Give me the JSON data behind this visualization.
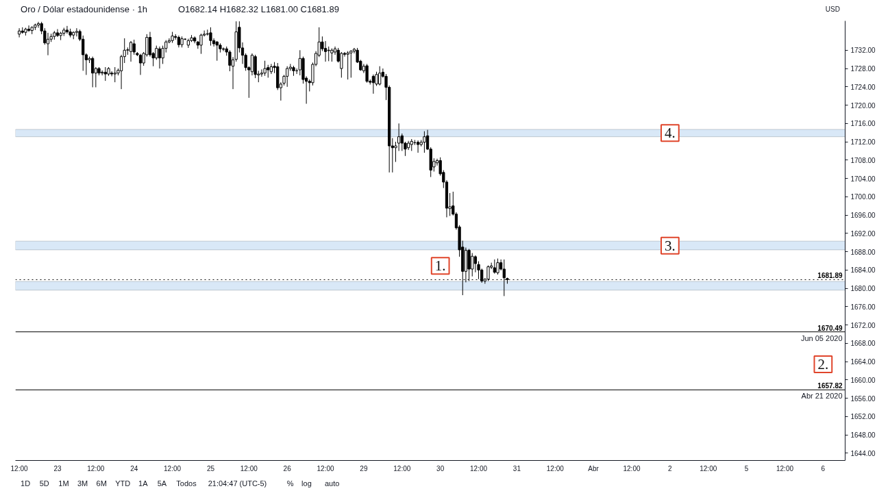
{
  "chart_data": {
    "type": "candlestick",
    "title": "Oro / Dólar estadounidense · 1h",
    "subtitle": "O1682.14  H1682.32  L1681.00  C1681.89",
    "ylabel": "USD",
    "color": "#000000",
    "categories": [
      "12:00",
      null,
      null,
      null,
      null,
      null,
      null,
      null,
      null,
      null,
      null,
      null,
      "23",
      null,
      null,
      null,
      null,
      null,
      null,
      null,
      null,
      null,
      null,
      null,
      "12:00",
      null,
      null,
      null,
      null,
      null,
      null,
      null,
      null,
      null,
      null,
      null,
      "24",
      null,
      null,
      null,
      null,
      null,
      null,
      null,
      null,
      null,
      null,
      null,
      "12:00",
      null,
      null,
      null,
      null,
      null,
      null,
      null,
      null,
      null,
      null,
      null,
      "25",
      null,
      null,
      null,
      null,
      null,
      null,
      null,
      null,
      null,
      null,
      null,
      "12:00",
      null,
      null,
      null,
      null,
      null,
      null,
      null,
      null,
      null,
      null,
      null,
      "26",
      null,
      null,
      null,
      null,
      null,
      null,
      null,
      null,
      null,
      null,
      null,
      "12:00",
      null,
      null,
      null,
      null,
      null,
      null,
      null,
      null,
      null,
      null,
      null,
      "29",
      null,
      null,
      null,
      null,
      null,
      null,
      null,
      null,
      null,
      null,
      null,
      "12:00",
      null,
      null,
      null,
      null,
      null,
      null,
      null,
      null,
      null,
      null,
      null,
      "30",
      null,
      null,
      null,
      null,
      null,
      null,
      null,
      null,
      null,
      null,
      null,
      "12:00",
      null,
      null,
      null,
      null,
      null,
      null,
      null,
      null,
      null,
      null,
      null,
      "31",
      null,
      null,
      null,
      null,
      null,
      null,
      null,
      null,
      null,
      null,
      null,
      "12:00",
      null,
      null,
      null,
      null,
      null,
      null,
      null,
      null,
      null,
      null,
      null,
      "Abr",
      null,
      null,
      null,
      null,
      null,
      null,
      null,
      null,
      null,
      null,
      null,
      "12:00",
      null,
      null,
      null,
      null,
      null,
      null,
      null,
      null,
      null,
      null,
      null,
      "2",
      null,
      null,
      null,
      null,
      null,
      null,
      null,
      null,
      null,
      null,
      null,
      "12:00",
      null,
      null,
      null,
      null,
      null,
      null,
      null,
      null,
      null,
      null,
      null,
      "5",
      null,
      null,
      null,
      null,
      null,
      null,
      null,
      null,
      null,
      null,
      null,
      "12:00",
      null,
      null,
      null,
      null,
      null,
      null,
      null,
      null,
      null,
      null,
      null,
      "6",
      null,
      null,
      null,
      null,
      null,
      null
    ],
    "ohlc": [
      [
        1735.5,
        1736.8,
        1734.8,
        1736.2
      ],
      [
        1736.2,
        1737.0,
        1735.6,
        1735.9
      ],
      [
        1735.9,
        1736.9,
        1735.2,
        1736.6
      ],
      [
        1736.6,
        1737.4,
        1736.0,
        1736.3
      ],
      [
        1736.3,
        1737.2,
        1735.5,
        1737.0
      ],
      [
        1737.0,
        1737.8,
        1736.4,
        1737.5
      ],
      [
        1737.5,
        1738.2,
        1736.9,
        1737.8
      ],
      [
        1737.8,
        1738.2,
        1735.5,
        1736.2
      ],
      [
        1736.2,
        1736.8,
        1733.2,
        1733.6
      ],
      [
        1733.4,
        1735.8,
        1730.9,
        1734.4
      ],
      [
        1734.4,
        1735.6,
        1733.8,
        1735.0
      ],
      [
        1735.0,
        1736.2,
        1734.3,
        1735.8
      ],
      [
        1735.8,
        1736.6,
        1734.9,
        1735.2
      ],
      [
        1735.2,
        1736.0,
        1734.2,
        1735.7
      ],
      [
        1735.7,
        1736.9,
        1735.1,
        1736.4
      ],
      [
        1736.4,
        1737.3,
        1735.6,
        1736.0
      ],
      [
        1736.0,
        1736.7,
        1734.8,
        1735.3
      ],
      [
        1735.3,
        1736.1,
        1734.4,
        1735.9
      ],
      [
        1735.9,
        1736.8,
        1735.0,
        1736.1
      ],
      [
        1736.1,
        1736.5,
        1734.0,
        1734.4
      ],
      [
        1734.4,
        1735.2,
        1727.5,
        1731.0
      ],
      [
        1731.0,
        1731.3,
        1726.6,
        1729.9
      ],
      [
        1729.9,
        1730.6,
        1729.2,
        1730.2
      ],
      [
        1730.2,
        1730.6,
        1723.9,
        1727.0
      ],
      [
        1727.0,
        1728.3,
        1723.9,
        1728.0
      ],
      [
        1728.0,
        1728.3,
        1726.5,
        1727.0
      ],
      [
        1727.0,
        1727.6,
        1726.5,
        1727.2
      ],
      [
        1727.2,
        1728.3,
        1725.3,
        1726.8
      ],
      [
        1726.8,
        1728.3,
        1726.4,
        1728.0
      ],
      [
        1727.0,
        1727.4,
        1726.3,
        1726.8
      ],
      [
        1726.8,
        1728.3,
        1725.0,
        1727.0
      ],
      [
        1727.0,
        1728.0,
        1726.5,
        1727.6
      ],
      [
        1727.5,
        1731.0,
        1723.5,
        1730.6
      ],
      [
        1730.6,
        1734.6,
        1729.2,
        1732.0
      ],
      [
        1732.0,
        1732.6,
        1731.0,
        1732.1
      ],
      [
        1731.7,
        1734.0,
        1729.5,
        1733.7
      ],
      [
        1733.4,
        1734.3,
        1731.0,
        1731.6
      ],
      [
        1731.3,
        1731.6,
        1730.7,
        1731.0
      ],
      [
        1730.9,
        1731.2,
        1726.6,
        1729.2
      ],
      [
        1729.2,
        1731.6,
        1728.6,
        1731.3
      ],
      [
        1731.0,
        1735.5,
        1730.6,
        1734.8
      ],
      [
        1734.8,
        1736.0,
        1730.6,
        1731.0
      ],
      [
        1731.3,
        1731.6,
        1728.5,
        1730.3
      ],
      [
        1730.3,
        1733.0,
        1729.9,
        1732.4
      ],
      [
        1732.3,
        1732.8,
        1728.0,
        1730.3
      ],
      [
        1730.3,
        1733.0,
        1729.0,
        1732.4
      ],
      [
        1732.4,
        1734.2,
        1731.5,
        1733.8
      ],
      [
        1733.8,
        1734.6,
        1733.5,
        1734.1
      ],
      [
        1734.1,
        1736.0,
        1733.6,
        1735.1
      ],
      [
        1735.0,
        1735.5,
        1734.3,
        1734.8
      ],
      [
        1734.8,
        1735.2,
        1732.6,
        1733.2
      ],
      [
        1733.2,
        1735.0,
        1732.6,
        1734.5
      ],
      [
        1734.4,
        1734.6,
        1734.2,
        1734.4
      ],
      [
        1733.1,
        1734.5,
        1732.5,
        1734.1
      ],
      [
        1734.1,
        1735.3,
        1733.8,
        1734.7
      ],
      [
        1734.7,
        1735.0,
        1733.5,
        1734.0
      ],
      [
        1733.8,
        1734.0,
        1732.3,
        1733.1
      ],
      [
        1733.1,
        1735.6,
        1731.2,
        1735.3
      ],
      [
        1735.3,
        1736.3,
        1735.0,
        1735.5
      ],
      [
        1735.5,
        1736.5,
        1735.2,
        1735.6
      ],
      [
        1735.8,
        1737.0,
        1733.0,
        1734.1
      ],
      [
        1734.1,
        1734.6,
        1732.8,
        1733.4
      ],
      [
        1733.8,
        1734.0,
        1729.7,
        1733.1
      ],
      [
        1733.1,
        1733.5,
        1731.5,
        1732.3
      ],
      [
        1732.3,
        1732.6,
        1731.8,
        1732.2
      ],
      [
        1732.3,
        1732.8,
        1730.8,
        1731.6
      ],
      [
        1731.6,
        1732.0,
        1727.4,
        1728.7
      ],
      [
        1728.5,
        1730.5,
        1723.5,
        1729.9
      ],
      [
        1730.0,
        1738.3,
        1729.5,
        1736.0
      ],
      [
        1737.0,
        1738.3,
        1731.5,
        1732.5
      ],
      [
        1732.5,
        1733.7,
        1729.0,
        1730.9
      ],
      [
        1730.9,
        1731.3,
        1727.5,
        1728.2
      ],
      [
        1728.2,
        1728.5,
        1721.6,
        1727.7
      ],
      [
        1727.3,
        1731.3,
        1726.5,
        1730.9
      ],
      [
        1730.6,
        1731.0,
        1725.9,
        1726.7
      ],
      [
        1726.6,
        1727.5,
        1725.0,
        1726.8
      ],
      [
        1726.8,
        1727.8,
        1726.2,
        1727.0
      ],
      [
        1727.0,
        1729.7,
        1726.4,
        1728.0
      ],
      [
        1728.2,
        1728.8,
        1726.0,
        1727.7
      ],
      [
        1727.3,
        1729.0,
        1726.8,
        1728.4
      ],
      [
        1728.5,
        1729.4,
        1727.0,
        1728.2
      ],
      [
        1728.4,
        1729.2,
        1723.3,
        1723.8
      ],
      [
        1723.8,
        1725.0,
        1721.0,
        1724.6
      ],
      [
        1724.8,
        1726.6,
        1724.3,
        1726.3
      ],
      [
        1726.3,
        1728.5,
        1724.0,
        1728.0
      ],
      [
        1728.0,
        1729.0,
        1727.5,
        1728.3
      ],
      [
        1728.2,
        1728.6,
        1726.4,
        1727.5
      ],
      [
        1727.5,
        1728.0,
        1726.8,
        1727.5
      ],
      [
        1727.7,
        1732.0,
        1726.5,
        1730.2
      ],
      [
        1730.2,
        1730.6,
        1724.7,
        1725.6
      ],
      [
        1725.9,
        1726.3,
        1720.3,
        1725.2
      ],
      [
        1725.2,
        1725.6,
        1723.0,
        1724.9
      ],
      [
        1724.9,
        1729.3,
        1724.3,
        1728.9
      ],
      [
        1728.9,
        1731.8,
        1728.5,
        1731.3
      ],
      [
        1730.9,
        1737.0,
        1730.5,
        1733.8
      ],
      [
        1733.8,
        1735.0,
        1731.8,
        1732.3
      ],
      [
        1732.4,
        1734.0,
        1729.5,
        1731.7
      ],
      [
        1731.9,
        1732.8,
        1729.6,
        1732.0
      ],
      [
        1731.4,
        1732.4,
        1729.5,
        1732.0
      ],
      [
        1731.6,
        1732.8,
        1731.0,
        1732.3
      ],
      [
        1732.0,
        1732.5,
        1729.3,
        1729.6
      ],
      [
        1728.0,
        1731.6,
        1726.0,
        1731.3
      ],
      [
        1731.3,
        1731.6,
        1730.6,
        1731.1
      ],
      [
        1731.1,
        1731.8,
        1725.6,
        1731.4
      ],
      [
        1731.4,
        1732.0,
        1726.0,
        1731.8
      ],
      [
        1731.8,
        1732.5,
        1731.3,
        1732.2
      ],
      [
        1732.0,
        1732.5,
        1729.2,
        1729.4
      ],
      [
        1729.6,
        1729.9,
        1727.5,
        1727.7
      ],
      [
        1727.5,
        1729.0,
        1727.0,
        1728.5
      ],
      [
        1728.6,
        1729.0,
        1724.9,
        1725.2
      ],
      [
        1725.2,
        1725.6,
        1724.5,
        1725.0
      ],
      [
        1726.3,
        1726.7,
        1722.5,
        1724.9
      ],
      [
        1724.6,
        1727.3,
        1724.2,
        1726.7
      ],
      [
        1724.6,
        1728.5,
        1724.3,
        1727.0
      ],
      [
        1727.2,
        1728.0,
        1726.0,
        1726.3
      ],
      [
        1726.3,
        1726.8,
        1721.1,
        1723.9
      ],
      [
        1723.9,
        1724.3,
        1705.3,
        1711.1
      ],
      [
        1711.1,
        1712.8,
        1705.3,
        1710.7
      ],
      [
        1710.7,
        1712.0,
        1707.6,
        1711.1
      ],
      [
        1711.7,
        1716.0,
        1710.0,
        1713.1
      ],
      [
        1713.3,
        1713.8,
        1710.0,
        1711.7
      ],
      [
        1711.7,
        1712.0,
        1708.9,
        1710.4
      ],
      [
        1710.7,
        1712.2,
        1710.2,
        1711.7
      ],
      [
        1711.4,
        1712.6,
        1710.0,
        1712.1
      ],
      [
        1711.8,
        1712.4,
        1711.3,
        1711.8
      ],
      [
        1711.9,
        1712.3,
        1709.6,
        1711.4
      ],
      [
        1711.4,
        1712.4,
        1711.0,
        1711.9
      ],
      [
        1711.9,
        1714.3,
        1709.6,
        1713.1
      ],
      [
        1713.3,
        1714.6,
        1710.2,
        1710.4
      ],
      [
        1710.4,
        1710.8,
        1704.3,
        1705.8
      ],
      [
        1706.5,
        1708.4,
        1705.5,
        1707.7
      ],
      [
        1707.4,
        1708.3,
        1706.8,
        1707.9
      ],
      [
        1707.9,
        1708.6,
        1704.6,
        1705.0
      ],
      [
        1705.3,
        1705.8,
        1701.9,
        1703.2
      ],
      [
        1703.2,
        1703.6,
        1695.5,
        1697.5
      ],
      [
        1697.4,
        1700.8,
        1695.8,
        1697.8
      ],
      [
        1698.0,
        1701.1,
        1695.9,
        1696.2
      ],
      [
        1696.2,
        1696.6,
        1692.8,
        1693.2
      ],
      [
        1693.4,
        1693.8,
        1686.9,
        1688.4
      ],
      [
        1689.0,
        1690.4,
        1678.5,
        1683.7
      ],
      [
        1683.7,
        1688.9,
        1681.3,
        1688.3
      ],
      [
        1688.3,
        1688.6,
        1681.6,
        1684.2
      ],
      [
        1684.2,
        1687.7,
        1682.6,
        1687.0
      ],
      [
        1686.9,
        1687.2,
        1683.5,
        1685.4
      ],
      [
        1685.2,
        1685.9,
        1682.0,
        1684.0
      ],
      [
        1684.0,
        1684.3,
        1681.2,
        1681.6
      ],
      [
        1681.6,
        1682.2,
        1681.0,
        1682.0
      ],
      [
        1682.0,
        1685.0,
        1681.6,
        1684.7
      ],
      [
        1684.6,
        1685.6,
        1684.2,
        1684.9
      ],
      [
        1684.5,
        1686.3,
        1683.2,
        1683.5
      ],
      [
        1683.4,
        1686.5,
        1683.0,
        1685.6
      ],
      [
        1685.6,
        1686.3,
        1683.9,
        1684.2
      ],
      [
        1684.2,
        1686.3,
        1678.3,
        1682.3
      ],
      [
        1682.14,
        1682.32,
        1681.0,
        1681.89
      ],
      null,
      null,
      null,
      null,
      null,
      null,
      null,
      null,
      null,
      null,
      null,
      null,
      null,
      null,
      null,
      null,
      null,
      null,
      null,
      null,
      null,
      null,
      null,
      null,
      null,
      null,
      null,
      null,
      null,
      null,
      null,
      null,
      null,
      null,
      null,
      null,
      null,
      null,
      null,
      null,
      null,
      null,
      null,
      null,
      null,
      null,
      null,
      null,
      null,
      null,
      null,
      null,
      null,
      null,
      null,
      null,
      null,
      null,
      null,
      null,
      null,
      null,
      null,
      null,
      null,
      null,
      null,
      null,
      null,
      null,
      null,
      null,
      null,
      null,
      null,
      null,
      null,
      null,
      null,
      null,
      null,
      null,
      null,
      null,
      null,
      null,
      null,
      null,
      null,
      null,
      null,
      null,
      null,
      null,
      null,
      null,
      null,
      null,
      null,
      null,
      null,
      null,
      null,
      null,
      null
    ],
    "ylim": [
      1642.4,
      1738.4
    ],
    "yticks": [
      {
        "value": 1644,
        "label": "1644.00"
      },
      {
        "value": 1648,
        "label": "1648.00"
      },
      {
        "value": 1652,
        "label": "1652.00"
      },
      {
        "value": 1656,
        "label": "1656.00"
      },
      {
        "value": 1660,
        "label": "1660.00"
      },
      {
        "value": 1664,
        "label": "1664.00"
      },
      {
        "value": 1668,
        "label": "1668.00"
      },
      {
        "value": 1672,
        "label": "1672.00"
      },
      {
        "value": 1676,
        "label": "1676.00"
      },
      {
        "value": 1680,
        "label": "1680.00"
      },
      {
        "value": 1684,
        "label": "1684.00"
      },
      {
        "value": 1688,
        "label": "1688.00"
      },
      {
        "value": 1692,
        "label": "1692.00"
      },
      {
        "value": 1696,
        "label": "1696.00"
      },
      {
        "value": 1700,
        "label": "1700.00"
      },
      {
        "value": 1704,
        "label": "1704.00"
      },
      {
        "value": 1708,
        "label": "1708.00"
      },
      {
        "value": 1712,
        "label": "1712.00"
      },
      {
        "value": 1716,
        "label": "1716.00"
      },
      {
        "value": 1720,
        "label": "1720.00"
      },
      {
        "value": 1724,
        "label": "1724.00"
      },
      {
        "value": 1728,
        "label": "1728.00"
      },
      {
        "value": 1732,
        "label": "1732.00"
      }
    ],
    "bands": [
      {
        "axis": "y",
        "from": 1713.1,
        "to": 1714.7,
        "color": "#d9e8f7"
      },
      {
        "axis": "y",
        "from": 1688.4,
        "to": 1690.3,
        "color": "#d9e8f7"
      },
      {
        "axis": "y",
        "from": 1679.6,
        "to": 1681.5,
        "color": "#d9e8f7"
      }
    ],
    "ref_lines": [
      {
        "axis": "y",
        "value": 1681.89,
        "color": "#000000",
        "line_style": "dotted"
      },
      {
        "axis": "y",
        "value": 1670.49,
        "label": "Jun 05 2020",
        "color": "#000000"
      },
      {
        "axis": "y",
        "value": 1657.82,
        "label": "Abr 21 2020",
        "color": "#000000"
      }
    ],
    "annotations": [
      {
        "text": "4.",
        "x": "2",
        "y": 1713.9
      },
      {
        "text": "3.",
        "x": "2",
        "y": 1689.3
      },
      {
        "text": "1.",
        "x": "30",
        "y": 1684.9
      },
      {
        "text": "2.",
        "x": "6",
        "y": 1663.4
      },
      {
        "text": "1681.89",
        "y": 1681.89
      },
      {
        "text": "1670.49",
        "y": 1670.49
      },
      {
        "text": "1657.82",
        "y": 1657.82
      },
      "1D",
      "5D",
      "1M",
      "3M",
      "6M",
      "YTD",
      "1A",
      "5A",
      "Todos",
      "21:04:47 (UTC-5)",
      "%",
      "log",
      "auto"
    ]
  }
}
